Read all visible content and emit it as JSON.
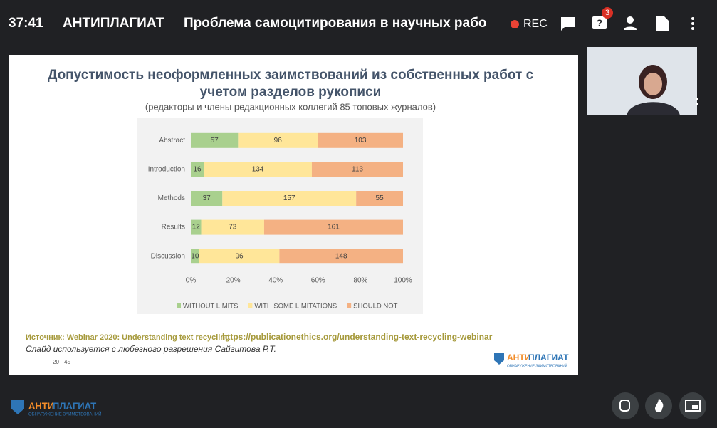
{
  "header": {
    "time": "37:41",
    "brand": "АНТИПЛАГИАТ",
    "title": "Проблема самоцитирования в научных рабо",
    "rec": "REC",
    "badge": "3"
  },
  "slide": {
    "title_line1": "Допустимость неоформленных заимствований из собственных работ с",
    "title_line2": "учетом разделов рукописи",
    "subtitle": "(редакторы и члены редакционных коллегий 85 топовых журналов)",
    "source": "Источник: Webinar 2020: Understanding text recycling",
    "source_url": "https://publicationethics.org/understanding-text-recycling-webinar",
    "credit": "Слайд используется с любезного разрешения Сайгитова Р.Т.",
    "page_left": "20",
    "page_right": "45",
    "logo_a": "АНТИ",
    "logo_b": "ПЛАГИАТ",
    "logo_sub": "ОБНАРУЖЕНИЕ ЗАИМСТВОВАНИЙ"
  },
  "footer": {
    "logo_a": "АНТИ",
    "logo_b": "ПЛАГИАТ",
    "logo_sub": "ОБНАРУЖЕНИЕ ЗАИМСТВОВАНИЙ"
  },
  "chart_data": {
    "type": "stacked-bar-100",
    "categories": [
      "Abstract",
      "Introduction",
      "Methods",
      "Results",
      "Discussion"
    ],
    "series": [
      {
        "name": "WITHOUT LIMITS",
        "color": "#a9d08e",
        "values": [
          57,
          16,
          37,
          12,
          10
        ]
      },
      {
        "name": "WITH SOME LIMITATIONS",
        "color": "#ffe699",
        "values": [
          96,
          134,
          157,
          73,
          96
        ]
      },
      {
        "name": "SHOULD NOT",
        "color": "#f4b183",
        "values": [
          103,
          113,
          55,
          161,
          148
        ]
      }
    ],
    "xlim": [
      0,
      100
    ],
    "xticks": [
      {
        "value": 0,
        "label": "0%"
      },
      {
        "value": 20,
        "label": "20%"
      },
      {
        "value": 40,
        "label": "40%"
      },
      {
        "value": 60,
        "label": "60%"
      },
      {
        "value": 80,
        "label": "80%"
      },
      {
        "value": 100,
        "label": "100%"
      }
    ]
  }
}
